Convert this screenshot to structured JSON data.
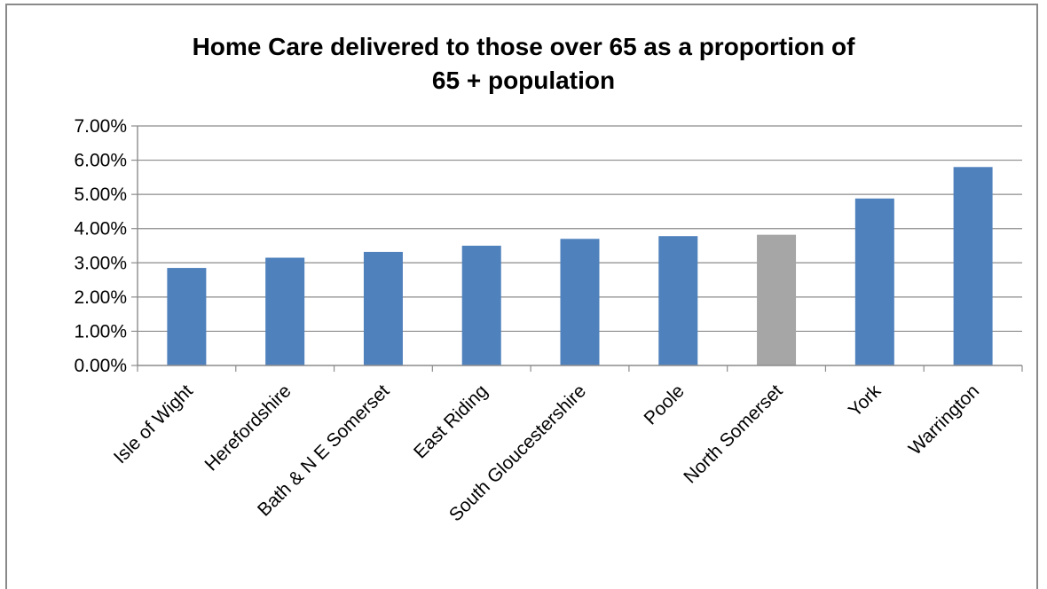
{
  "chart_data": {
    "type": "bar",
    "title_lines": [
      "Home Care delivered to those over 65 as a proportion of",
      "65 + population"
    ],
    "categories": [
      "Isle of Wight",
      "Herefordshire",
      "Bath & N E Somerset",
      "East Riding",
      "South Gloucestershire",
      "Poole",
      "North Somerset",
      "York",
      "Warrington"
    ],
    "values": [
      2.85,
      3.15,
      3.32,
      3.5,
      3.7,
      3.78,
      3.82,
      4.88,
      5.8
    ],
    "ylim": [
      0,
      7
    ],
    "yticks": [
      "0.00%",
      "1.00%",
      "2.00%",
      "3.00%",
      "4.00%",
      "5.00%",
      "6.00%",
      "7.00%"
    ],
    "grid": true,
    "colors": {
      "bar": "#4f81bd",
      "highlight": "#a6a6a6",
      "highlight_category": "North Somerset"
    }
  }
}
